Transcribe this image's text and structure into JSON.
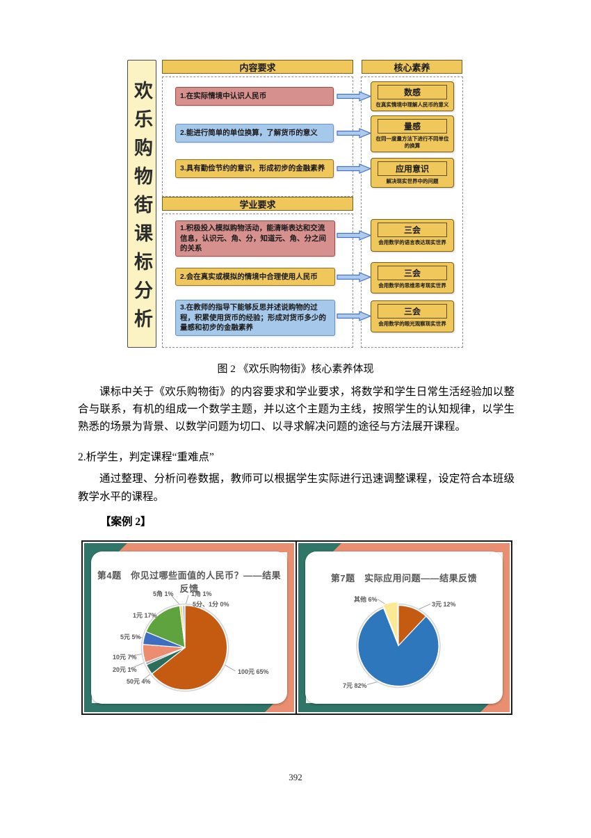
{
  "doc": {
    "figure_caption": "图 2 《欢乐购物街》核心素养体现",
    "paragraph1": "课标中关于《欢乐购物街》的内容要求和学业要求，将数学和学生日常生活经验加以整合与联系，有机的组成一个数学主题，并以这个主题为主线，按照学生的认知规律，以学生熟悉的场景为背景、以数学问题为切口、以寻求解决问题的途径与方法展开课程。",
    "heading2": "2.析学生，判定课程“重难点”",
    "paragraph2": "通过整理、分析问卷数据，教师可以根据学生实际进行迅速调整课程，设定符合本班级教学水平的课程。",
    "case_label": "【案例 2】",
    "page_number": "392"
  },
  "diagram": {
    "side_label": "欢乐购物街课标分析",
    "content_header": "内容要求",
    "content_boxes": [
      "1.在实际情境中认识人民币",
      "2.能进行简单的单位换算，了解货币的意义",
      "3.具有勤俭节约的意识，形成初步的金融素养"
    ],
    "academic_header": "学业要求",
    "academic_boxes": [
      "1.积极投入模拟购物活动，能清晰表达和交流信息，认识元、角、分，知道元、角、分之间的关系",
      "2.会在真实或模拟的情境中合理使用人民币",
      "3.在教师的指导下能够反思并述说购物的过程，积累使用货币的经验；形成对货币多少的量感和初步的金融素养"
    ],
    "core_header": "核心素养",
    "core_boxes": [
      {
        "title": "数感",
        "sub": "在真实情境中理解人民币的意义"
      },
      {
        "title": "量感",
        "sub": "在同一度量方法下进行不同单位的换算"
      },
      {
        "title": "应用意识",
        "sub": "解决现实世界中的问题"
      },
      {
        "title": "三会",
        "sub": "会用数学的语言表达现实世界"
      },
      {
        "title": "三会",
        "sub": "会用数学的思维思考现实世界"
      },
      {
        "title": "三会",
        "sub": "会用数学的眼光观察现实世界"
      }
    ],
    "colors": {
      "gold": "#EFC75A",
      "red_box": "#D6918E",
      "blue_box": "#A6C8EA",
      "pale_yellow": "#FBF3C3",
      "arrow_fill": "#AECBEC",
      "arrow_border": "#4472C4"
    }
  },
  "slide_theme": {
    "salmon": "#E98E70",
    "teal": "#2F7668",
    "title_color": "#575757"
  },
  "chart_data": [
    {
      "type": "pie",
      "title": "第4题　你见过哪些面值的人民币？——结果反馈",
      "direction": "clockwise",
      "start_angle_deg": 0,
      "legend": "none",
      "slices": [
        {
          "label": "100元",
          "value": 65,
          "color": "#C55A11"
        },
        {
          "label": "50元",
          "value": 4,
          "color": "#2C6E5C"
        },
        {
          "label": "20元",
          "value": 1,
          "color": "#A6A6A6"
        },
        {
          "label": "10元",
          "value": 7,
          "color": "#EC8C70"
        },
        {
          "label": "5元",
          "value": 5,
          "color": "#3F6EC0"
        },
        {
          "label": "1元",
          "value": 17,
          "color": "#5FA33F"
        },
        {
          "label": "5角",
          "value": 1,
          "color": "#F5D76A"
        },
        {
          "label": "1角",
          "value": 1,
          "color": "#A8C4E5"
        },
        {
          "label": "5分、1分",
          "value": 0,
          "color": "#D9D9D9"
        }
      ]
    },
    {
      "type": "pie",
      "title": "第7题　实际应用问题——结果反馈",
      "direction": "clockwise",
      "start_angle_deg": 0,
      "legend": "none",
      "slices": [
        {
          "label": "3元",
          "value": 12,
          "color": "#C55A11"
        },
        {
          "label": "7元",
          "value": 82,
          "color": "#2E77BC"
        },
        {
          "label": "其他",
          "value": 6,
          "color": "#FBE995",
          "explode": 5
        }
      ]
    }
  ]
}
